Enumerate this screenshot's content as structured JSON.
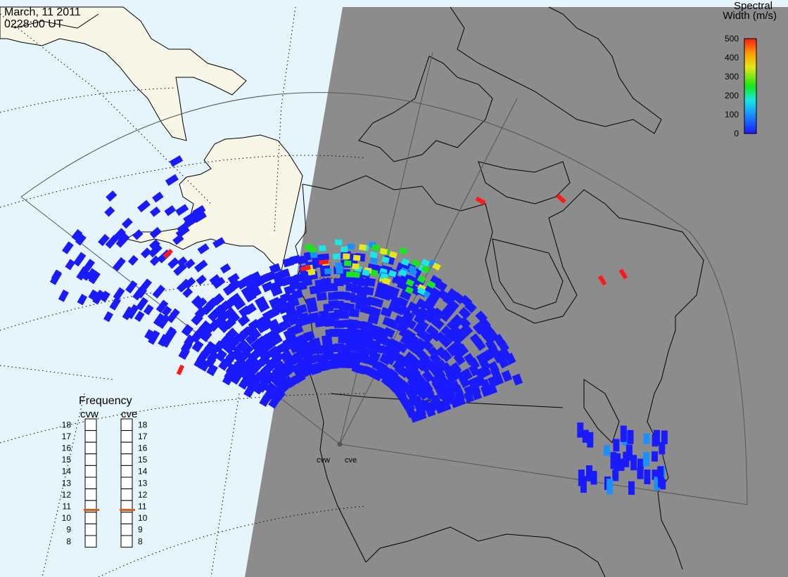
{
  "header": {
    "date": "March, 11 2011",
    "time": "0228:00 UT"
  },
  "colorbar": {
    "title_line1": "Spectral",
    "title_line2": "Width (m/s)",
    "ticks": [
      "500",
      "400",
      "300",
      "200",
      "100",
      "0"
    ],
    "range": [
      0,
      500
    ],
    "colors": [
      "#1a1aff",
      "#1a90ff",
      "#19e6e6",
      "#19e619",
      "#e6e619",
      "#ff9900",
      "#ff1a1a"
    ]
  },
  "frequency": {
    "title": "Frequency",
    "radars": [
      {
        "name": "cvw",
        "selected_mhz": 10.7
      },
      {
        "name": "cve",
        "selected_mhz": 10.7
      }
    ],
    "ticks": [
      "18",
      "17",
      "16",
      "15",
      "14",
      "13",
      "12",
      "11",
      "10",
      "9",
      "8"
    ],
    "marker_color": "#e05a1a"
  },
  "radar_sites": [
    {
      "name": "cvw"
    },
    {
      "name": "cve"
    }
  ],
  "colors": {
    "night": "#8c8c8c",
    "day_ocean": "#e6f5fc",
    "day_land": "#f8f6e6",
    "scatter_low": "#1a1aff"
  }
}
